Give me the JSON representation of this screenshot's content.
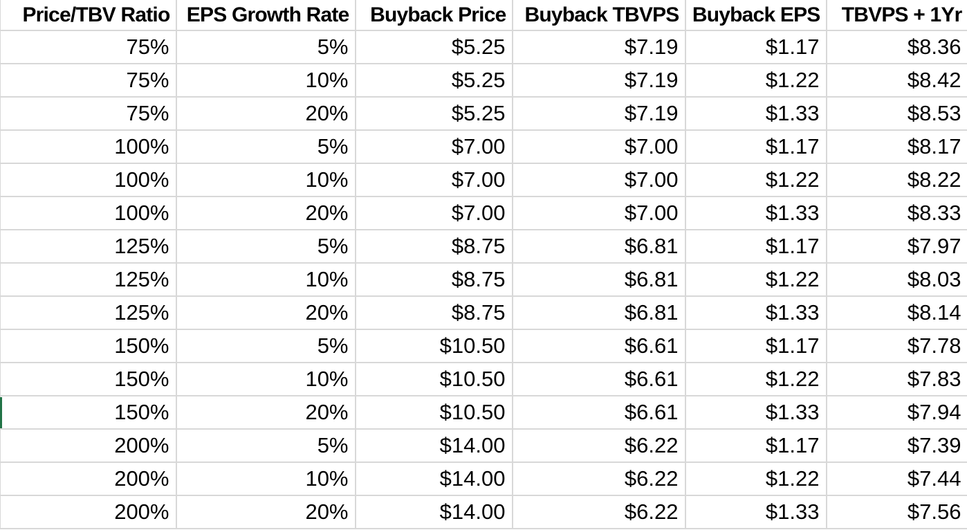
{
  "table": {
    "columns": [
      "Price/TBV Ratio",
      "EPS Growth Rate",
      "Buyback Price",
      "Buyback TBVPS",
      "Buyback EPS",
      "TBVPS + 1Yr"
    ],
    "rows": [
      [
        "75%",
        "5%",
        "$5.25",
        "$7.19",
        "$1.17",
        "$8.36"
      ],
      [
        "75%",
        "10%",
        "$5.25",
        "$7.19",
        "$1.22",
        "$8.42"
      ],
      [
        "75%",
        "20%",
        "$5.25",
        "$7.19",
        "$1.33",
        "$8.53"
      ],
      [
        "100%",
        "5%",
        "$7.00",
        "$7.00",
        "$1.17",
        "$8.17"
      ],
      [
        "100%",
        "10%",
        "$7.00",
        "$7.00",
        "$1.22",
        "$8.22"
      ],
      [
        "100%",
        "20%",
        "$7.00",
        "$7.00",
        "$1.33",
        "$8.33"
      ],
      [
        "125%",
        "5%",
        "$8.75",
        "$6.81",
        "$1.17",
        "$7.97"
      ],
      [
        "125%",
        "10%",
        "$8.75",
        "$6.81",
        "$1.22",
        "$8.03"
      ],
      [
        "125%",
        "20%",
        "$8.75",
        "$6.81",
        "$1.33",
        "$8.14"
      ],
      [
        "150%",
        "5%",
        "$10.50",
        "$6.61",
        "$1.17",
        "$7.78"
      ],
      [
        "150%",
        "10%",
        "$10.50",
        "$6.61",
        "$1.22",
        "$7.83"
      ],
      [
        "150%",
        "20%",
        "$10.50",
        "$6.61",
        "$1.33",
        "$7.94"
      ],
      [
        "200%",
        "5%",
        "$14.00",
        "$6.22",
        "$1.17",
        "$7.39"
      ],
      [
        "200%",
        "10%",
        "$14.00",
        "$6.22",
        "$1.22",
        "$7.44"
      ],
      [
        "200%",
        "20%",
        "$14.00",
        "$6.22",
        "$1.33",
        "$7.56"
      ]
    ]
  },
  "selection_marker": {
    "row_index": 11,
    "color": "#217346"
  },
  "colors": {
    "gridline": "#d8d8d8",
    "text": "#000000",
    "background": "#ffffff"
  }
}
